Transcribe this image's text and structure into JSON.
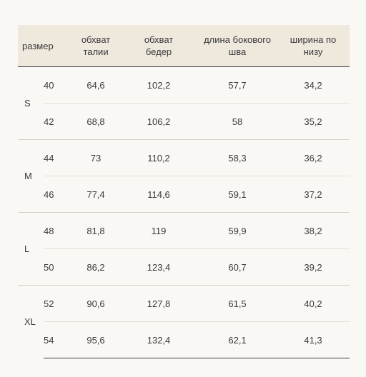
{
  "headers": {
    "size": "размер",
    "waist": [
      "обхват",
      "талии"
    ],
    "hips": [
      "обхват",
      "бедер"
    ],
    "side_length": [
      "длина бокового",
      "шва"
    ],
    "bottom_width": [
      "ширина по",
      "низу"
    ]
  },
  "groups": [
    {
      "letter": "S",
      "rows": [
        {
          "size": "40",
          "waist": "64,6",
          "hips": "102,2",
          "side_length": "57,7",
          "bottom_width": "34,2"
        },
        {
          "size": "42",
          "waist": "68,8",
          "hips": "106,2",
          "side_length": "58",
          "bottom_width": "35,2"
        }
      ]
    },
    {
      "letter": "M",
      "rows": [
        {
          "size": "44",
          "waist": "73",
          "hips": "110,2",
          "side_length": "58,3",
          "bottom_width": "36,2"
        },
        {
          "size": "46",
          "waist": "77,4",
          "hips": "114,6",
          "side_length": "59,1",
          "bottom_width": "37,2"
        }
      ]
    },
    {
      "letter": "L",
      "rows": [
        {
          "size": "48",
          "waist": "81,8",
          "hips": "119",
          "side_length": "59,9",
          "bottom_width": "38,2"
        },
        {
          "size": "50",
          "waist": "86,2",
          "hips": "123,4",
          "side_length": "60,7",
          "bottom_width": "39,2"
        }
      ]
    },
    {
      "letter": "XL",
      "rows": [
        {
          "size": "52",
          "waist": "90,6",
          "hips": "127,8",
          "side_length": "61,5",
          "bottom_width": "40,2"
        },
        {
          "size": "54",
          "waist": "95,6",
          "hips": "132,4",
          "side_length": "62,1",
          "bottom_width": "41,3"
        }
      ]
    }
  ]
}
